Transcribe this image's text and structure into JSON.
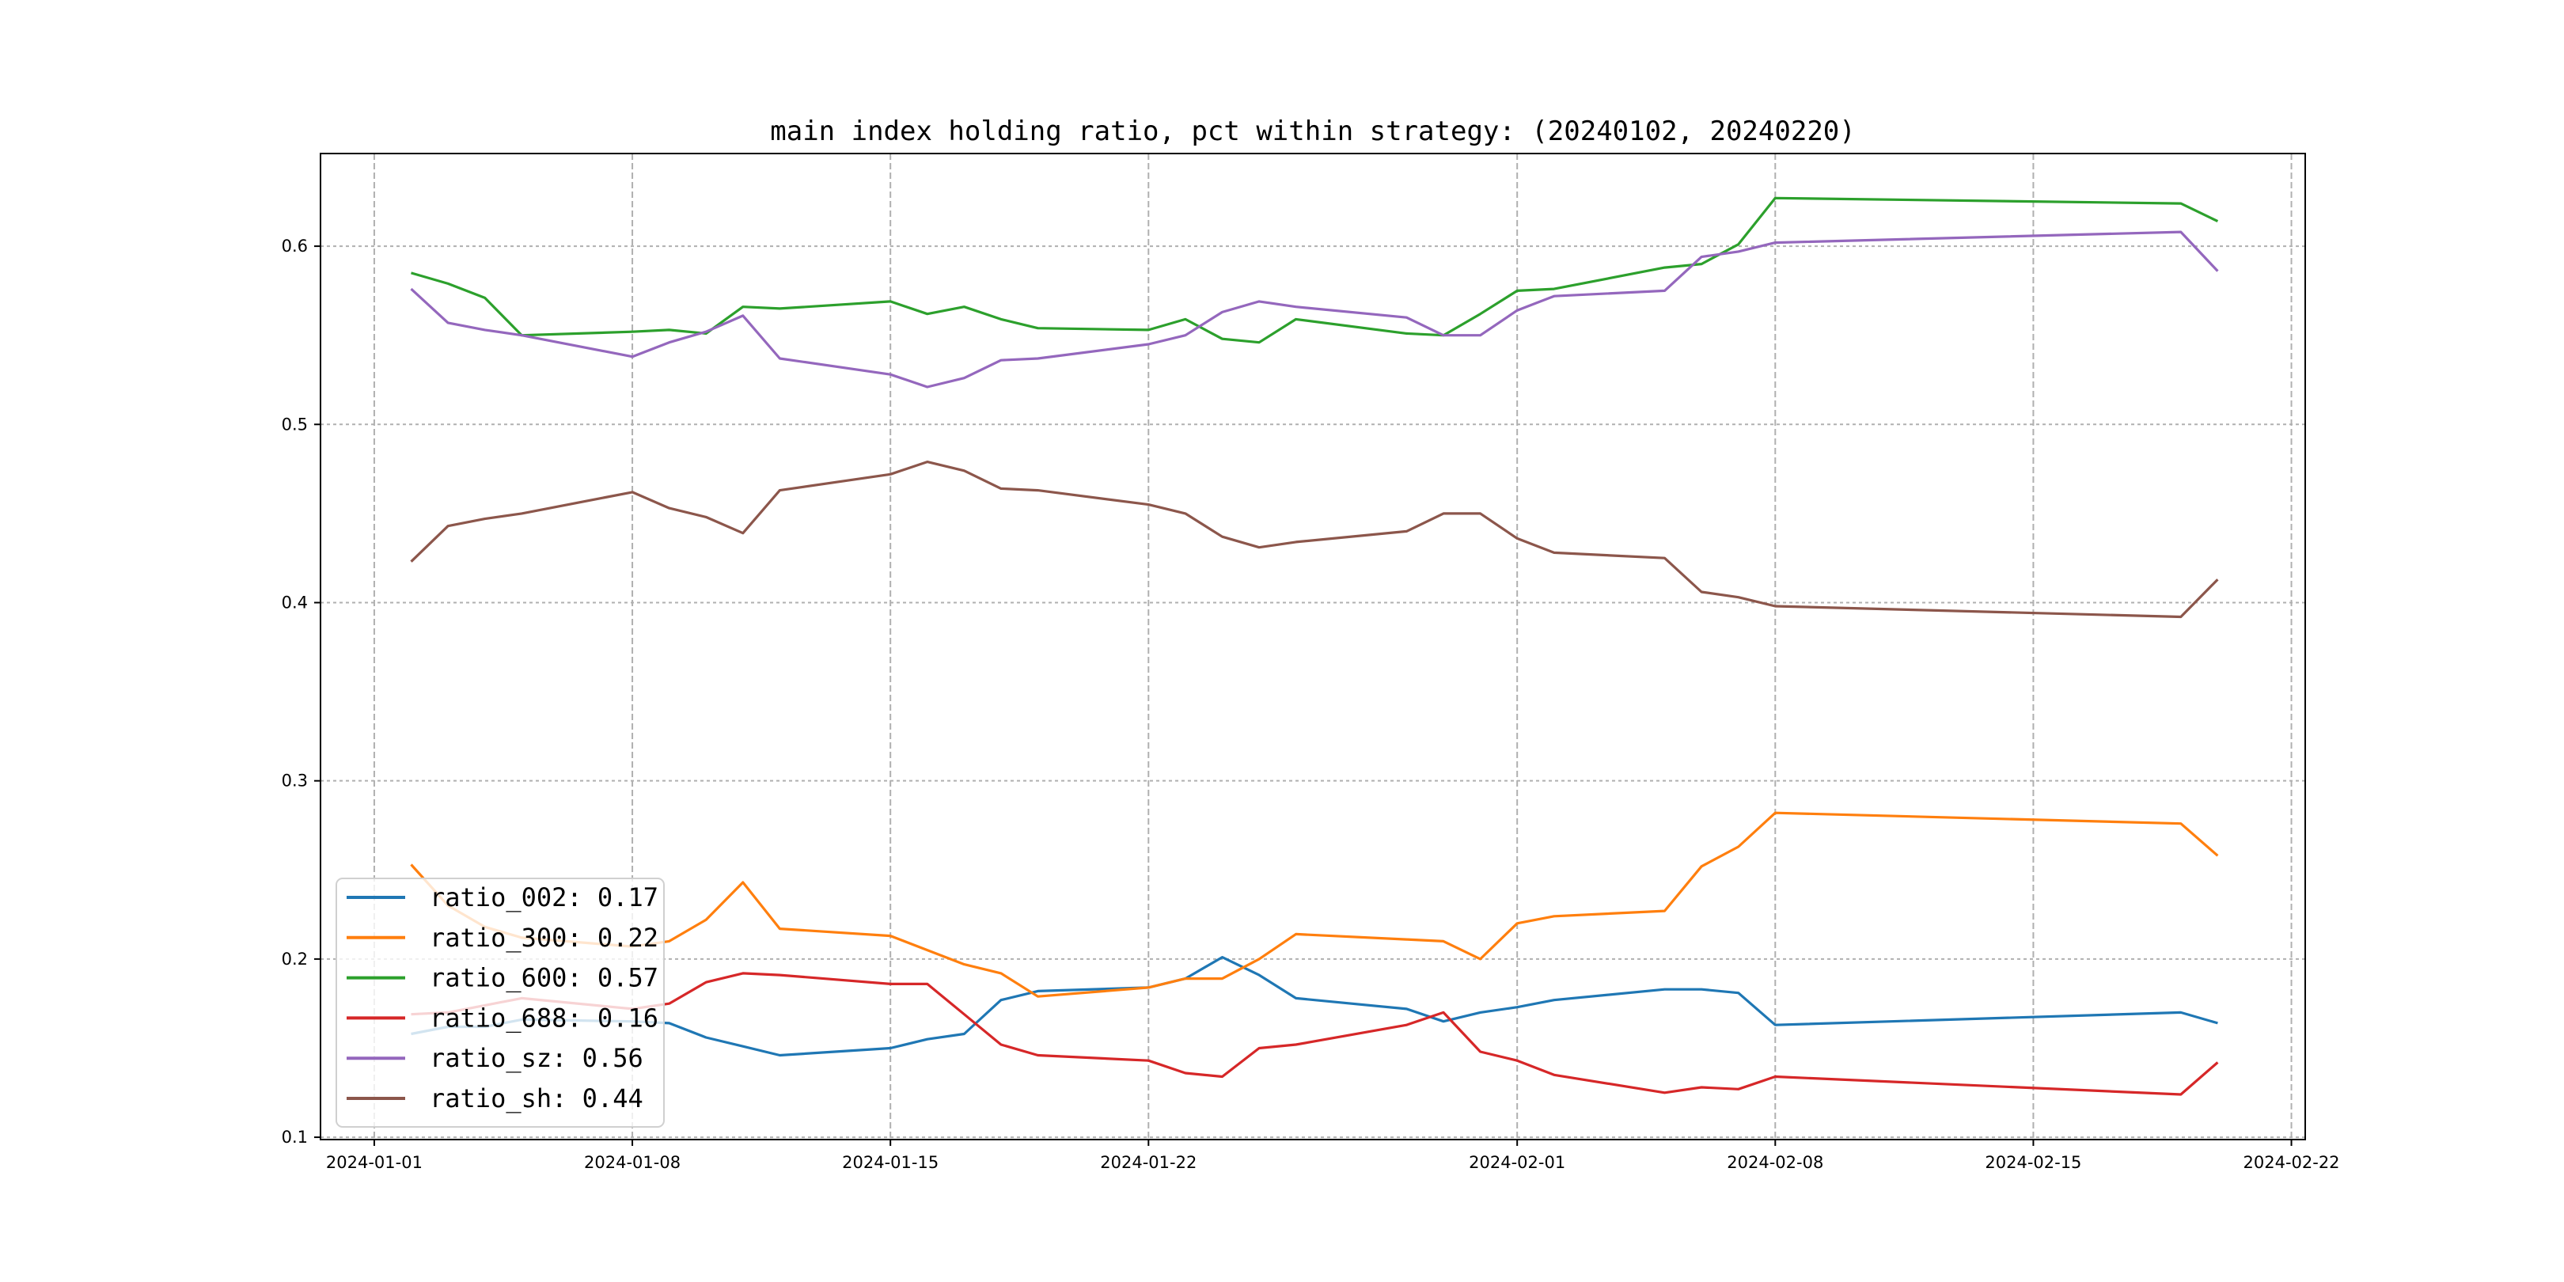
{
  "chart_data": {
    "type": "line",
    "title": "main index holding ratio, pct within strategy: (20240102, 20240220)",
    "xlabel": "",
    "ylabel": "",
    "grid": true,
    "legend_position": "lower-left",
    "xlim": [
      "2023-12-30T13:00",
      "2024-02-22T09:00"
    ],
    "ylim": [
      0.0987,
      0.652
    ],
    "x_ticks": [
      "2024-01-01",
      "2024-01-08",
      "2024-01-15",
      "2024-01-22",
      "2024-02-01",
      "2024-02-08",
      "2024-02-15",
      "2024-02-22"
    ],
    "y_ticks": [
      "0.1",
      "0.2",
      "0.3",
      "0.4",
      "0.5",
      "0.6"
    ],
    "x": [
      "2024-01-02",
      "2024-01-03",
      "2024-01-04",
      "2024-01-05",
      "2024-01-08",
      "2024-01-09",
      "2024-01-10",
      "2024-01-11",
      "2024-01-12",
      "2024-01-15",
      "2024-01-16",
      "2024-01-17",
      "2024-01-18",
      "2024-01-19",
      "2024-01-22",
      "2024-01-23",
      "2024-01-24",
      "2024-01-25",
      "2024-01-26",
      "2024-01-29",
      "2024-01-30",
      "2024-01-31",
      "2024-02-01",
      "2024-02-02",
      "2024-02-05",
      "2024-02-06",
      "2024-02-07",
      "2024-02-08",
      "2024-02-19",
      "2024-02-20"
    ],
    "series": [
      {
        "name": "ratio_002",
        "label": "ratio_002: 0.17",
        "color": "#1f77b4",
        "values": [
          0.158,
          0.162,
          0.162,
          0.166,
          0.165,
          0.164,
          0.156,
          0.151,
          0.146,
          0.15,
          0.155,
          0.158,
          0.177,
          0.182,
          0.184,
          0.189,
          0.201,
          0.191,
          0.178,
          0.172,
          0.165,
          0.17,
          0.173,
          0.177,
          0.183,
          0.183,
          0.181,
          0.163,
          0.17,
          0.164
        ]
      },
      {
        "name": "ratio_300",
        "label": "ratio_300: 0.22",
        "color": "#ff7f0e",
        "values": [
          0.253,
          0.23,
          0.218,
          0.212,
          0.207,
          0.21,
          0.222,
          0.243,
          0.217,
          0.213,
          0.205,
          0.197,
          0.192,
          0.179,
          0.184,
          0.189,
          0.189,
          0.2,
          0.214,
          0.211,
          0.21,
          0.2,
          0.22,
          0.224,
          0.227,
          0.252,
          0.263,
          0.282,
          0.276,
          0.258
        ]
      },
      {
        "name": "ratio_600",
        "label": "ratio_600: 0.57",
        "color": "#2ca02c",
        "values": [
          0.585,
          0.579,
          0.571,
          0.55,
          0.552,
          0.553,
          0.551,
          0.566,
          0.565,
          0.569,
          0.562,
          0.566,
          0.559,
          0.554,
          0.553,
          0.559,
          0.548,
          0.546,
          0.559,
          0.551,
          0.55,
          0.562,
          0.575,
          0.576,
          0.588,
          0.59,
          0.601,
          0.627,
          0.624,
          0.614
        ]
      },
      {
        "name": "ratio_688",
        "label": "ratio_688: 0.16",
        "color": "#d62728",
        "values": [
          0.169,
          0.17,
          0.174,
          0.178,
          0.172,
          0.175,
          0.187,
          0.192,
          0.191,
          0.186,
          0.186,
          0.169,
          0.152,
          0.146,
          0.143,
          0.136,
          0.134,
          0.15,
          0.152,
          0.163,
          0.17,
          0.148,
          0.143,
          0.135,
          0.125,
          0.128,
          0.127,
          0.134,
          0.124,
          0.142
        ]
      },
      {
        "name": "ratio_sz",
        "label": "ratio_sz: 0.56",
        "color": "#9467bd",
        "values": [
          0.576,
          0.557,
          0.553,
          0.55,
          0.538,
          0.546,
          0.552,
          0.561,
          0.537,
          0.528,
          0.521,
          0.526,
          0.536,
          0.537,
          0.545,
          0.55,
          0.563,
          0.569,
          0.566,
          0.56,
          0.55,
          0.55,
          0.564,
          0.572,
          0.575,
          0.594,
          0.597,
          0.602,
          0.608,
          0.586
        ]
      },
      {
        "name": "ratio_sh",
        "label": "ratio_sh: 0.44",
        "color": "#8c564b",
        "values": [
          0.423,
          0.443,
          0.447,
          0.45,
          0.462,
          0.453,
          0.448,
          0.439,
          0.463,
          0.472,
          0.479,
          0.474,
          0.464,
          0.463,
          0.455,
          0.45,
          0.437,
          0.431,
          0.434,
          0.44,
          0.45,
          0.45,
          0.436,
          0.428,
          0.425,
          0.406,
          0.403,
          0.398,
          0.392,
          0.413
        ]
      }
    ]
  }
}
